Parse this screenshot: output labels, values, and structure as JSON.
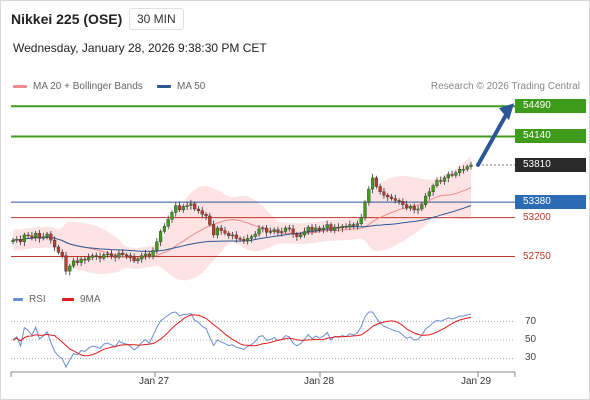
{
  "header": {
    "instrument": "Nikkei 225 (OSE)",
    "timeframe": "30 MIN",
    "datetime": "Wednesday, January 28, 2026 9:38:30 PM CET"
  },
  "legend": {
    "ma20_label": "MA 20 + Bollinger Bands",
    "ma50_label": "MA 50",
    "copyright": "Research © 2026 Trading Central"
  },
  "colors": {
    "ma20": "#f28b8b",
    "ma50": "#2b5797",
    "band_fill": "#fde3e3",
    "green": "#3f9b1b",
    "up_candle": "#3f9b1b",
    "down_candle": "#c0392b",
    "rsi": "#6b8fd6",
    "rsi_ma": "#e11b1b"
  },
  "price_levels": [
    {
      "label": "54490",
      "value": 54490,
      "style": "green"
    },
    {
      "label": "54140",
      "value": 54140,
      "style": "green"
    },
    {
      "label": "53810",
      "value": 53810,
      "style": "dark"
    },
    {
      "label": "53380",
      "value": 53380,
      "style": "blue"
    },
    {
      "label": "53200",
      "value": 53200,
      "style": "plain-red"
    },
    {
      "label": "52750",
      "value": 52750,
      "style": "plain-red"
    }
  ],
  "rsi_legend": {
    "rsi_label": "RSI",
    "ma_label": "9MA"
  },
  "rsi_ticks": [
    "70",
    "50",
    "30"
  ],
  "x_ticks": [
    "Jan 27",
    "Jan 28",
    "Jan 29"
  ],
  "chart_data": {
    "type": "candlestick",
    "price_range": [
      52420,
      54620
    ],
    "rsi_range": [
      20,
      80
    ],
    "closes": [
      52940,
      52950,
      52920,
      53000,
      52990,
      52970,
      53020,
      52960,
      52980,
      53010,
      52940,
      52860,
      52800,
      52760,
      52580,
      52640,
      52700,
      52680,
      52720,
      52710,
      52740,
      52760,
      52750,
      52730,
      52770,
      52780,
      52760,
      52740,
      52790,
      52770,
      52760,
      52740,
      52700,
      52720,
      52760,
      52780,
      52750,
      52820,
      52920,
      53040,
      53100,
      53180,
      53260,
      53340,
      53290,
      53330,
      53340,
      53360,
      53300,
      53280,
      53240,
      53220,
      53120,
      53000,
      53080,
      53050,
      53020,
      52990,
      53000,
      52960,
      52950,
      52930,
      52960,
      52980,
      53010,
      53070,
      53080,
      53030,
      53040,
      53060,
      53030,
      53040,
      53080,
      53070,
      53010,
      52980,
      53000,
      53040,
      53090,
      53050,
      53080,
      53060,
      53080,
      53120,
      53050,
      53090,
      53080,
      53100,
      53090,
      53120,
      53110,
      53130,
      53200,
      53380,
      53530,
      53660,
      53560,
      53500,
      53460,
      53440,
      53420,
      53400,
      53390,
      53350,
      53310,
      53330,
      53290,
      53300,
      53350,
      53450,
      53500,
      53570,
      53630,
      53620,
      53660,
      53700,
      53690,
      53720,
      53760,
      53760,
      53790,
      53810
    ]
  }
}
